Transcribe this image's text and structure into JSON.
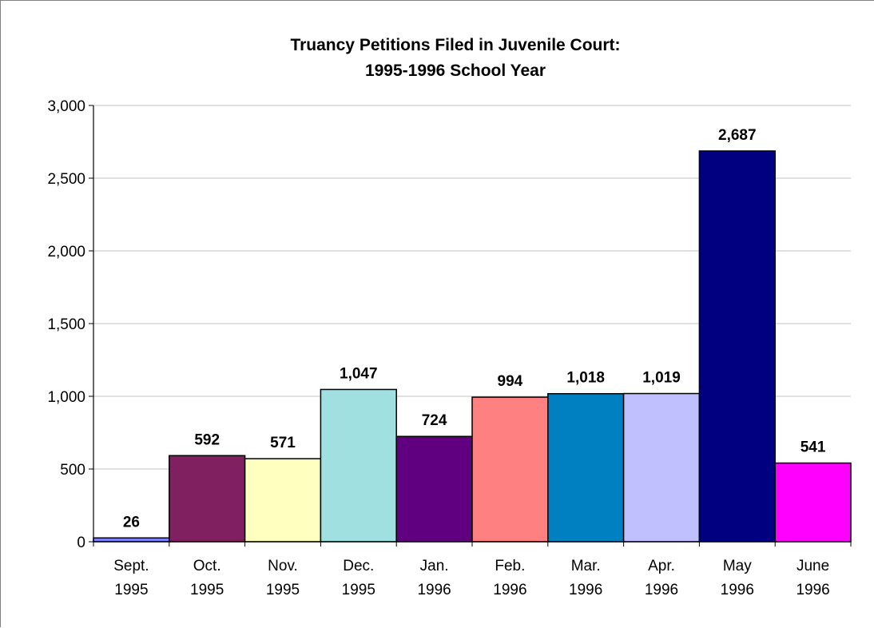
{
  "chart_data": {
    "type": "bar",
    "title_lines": [
      "Truancy Petitions Filed in Juvenile Court:",
      "1995-1996 School Year"
    ],
    "xlabel": "",
    "ylabel": "",
    "ylim": [
      0,
      3000
    ],
    "y_ticks": [
      0,
      500,
      1000,
      1500,
      2000,
      2500,
      3000
    ],
    "y_tick_labels": [
      "0",
      "500",
      "1,000",
      "1,500",
      "2,000",
      "2,500",
      "3,000"
    ],
    "grid": true,
    "legend": "none",
    "categories": [
      [
        "Sept.",
        "1995"
      ],
      [
        "Oct.",
        "1995"
      ],
      [
        "Nov.",
        "1995"
      ],
      [
        "Dec.",
        "1995"
      ],
      [
        "Jan.",
        "1996"
      ],
      [
        "Feb.",
        "1996"
      ],
      [
        "Mar.",
        "1996"
      ],
      [
        "Apr.",
        "1996"
      ],
      [
        "May",
        "1996"
      ],
      [
        "June",
        "1996"
      ]
    ],
    "values": [
      26,
      592,
      571,
      1047,
      724,
      994,
      1018,
      1019,
      2687,
      541
    ],
    "value_labels": [
      "26",
      "592",
      "571",
      "1,047",
      "724",
      "994",
      "1,018",
      "1,019",
      "2,687",
      "541"
    ],
    "bar_colors": [
      "#8080FF",
      "#802060",
      "#FFFFC0",
      "#A0E0E0",
      "#600080",
      "#FF8080",
      "#0080C0",
      "#C0C0FF",
      "#000080",
      "#FF00FF"
    ],
    "gridline_color": "#C0C0C0"
  }
}
